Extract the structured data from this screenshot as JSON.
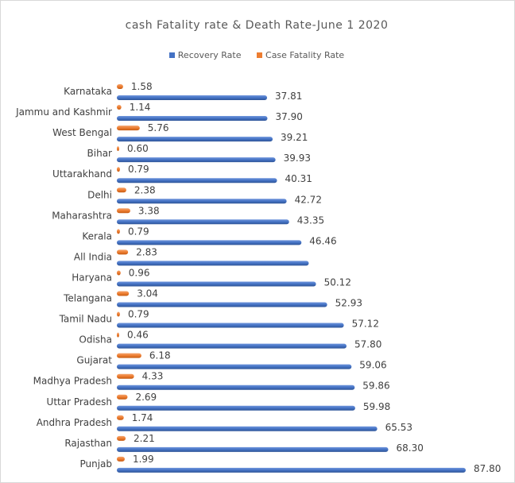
{
  "chart_data": {
    "type": "bar",
    "orientation": "horizontal",
    "title": "cash Fatality rate & Death Rate-June 1 2020",
    "xlabel": "",
    "ylabel": "",
    "xlim": [
      0,
      90
    ],
    "grid": false,
    "legend_position": "top",
    "categories": [
      "Karnataka",
      "Jammu and Kashmir",
      "West Bengal",
      "Bihar",
      "Uttarakhand",
      "Delhi",
      "Maharashtra",
      "Kerala",
      "All India",
      "Haryana",
      "Telangana",
      "Tamil Nadu",
      "Odisha",
      "Gujarat",
      "Madhya Pradesh",
      "Uttar Pradesh",
      "Andhra Pradesh",
      "Rajasthan",
      "Punjab"
    ],
    "series": [
      {
        "name": "Recovery Rate",
        "color": "#4472c4",
        "values": [
          37.81,
          37.9,
          39.21,
          39.93,
          40.31,
          42.72,
          43.35,
          46.46,
          48.3,
          50.12,
          52.93,
          57.12,
          57.8,
          59.06,
          59.86,
          59.98,
          65.53,
          68.3,
          87.8
        ],
        "labels": [
          "37.81",
          "37.90",
          "39.21",
          "39.93",
          "40.31",
          "42.72",
          "43.35",
          "46.46",
          "",
          "50.12",
          "52.93",
          "57.12",
          "57.80",
          "59.06",
          "59.86",
          "59.98",
          "65.53",
          "68.30",
          "87.80"
        ]
      },
      {
        "name": "Case Fatality Rate",
        "color": "#ed7d31",
        "values": [
          1.58,
          1.14,
          5.76,
          0.6,
          0.79,
          2.38,
          3.38,
          0.79,
          2.83,
          0.96,
          3.04,
          0.79,
          0.46,
          6.18,
          4.33,
          2.69,
          1.74,
          2.21,
          1.99
        ],
        "labels": [
          "1.58",
          "1.14",
          "5.76",
          "0.60",
          "0.79",
          "2.38",
          "3.38",
          "0.79",
          "2.83",
          "0.96",
          "3.04",
          "0.79",
          "0.46",
          "6.18",
          "4.33",
          "2.69",
          "1.74",
          "2.21",
          "1.99"
        ]
      }
    ]
  }
}
